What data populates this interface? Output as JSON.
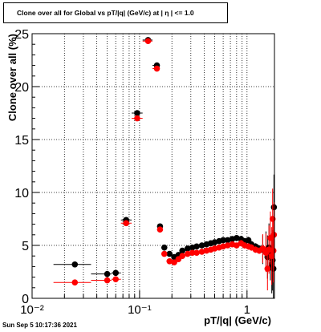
{
  "chart_data": {
    "type": "scatter",
    "title": "Clone  over all for Global vs pT/|q| (GeV/c) at |  η | <= 1.0",
    "xlabel": "pT/|q| (GeV/c)",
    "ylabel": "Clone  over all (%)",
    "xscale": "log",
    "xlim": [
      0.01,
      1.8
    ],
    "ylim": [
      0,
      25
    ],
    "grid": true,
    "x_tick_labels": [
      "10⁻²",
      "10⁻¹",
      "1"
    ],
    "y_tick_labels": [
      "0",
      "5",
      "10",
      "15",
      "20",
      "25"
    ],
    "series": [
      {
        "color": "#000000",
        "points": [
          [
            0.025,
            3.2
          ],
          [
            0.05,
            2.3
          ],
          [
            0.06,
            2.4
          ],
          [
            0.075,
            7.4
          ],
          [
            0.095,
            17.5
          ],
          [
            0.12,
            24.4
          ],
          [
            0.145,
            22.0
          ],
          [
            0.155,
            6.8
          ],
          [
            0.17,
            4.8
          ],
          [
            0.19,
            4.2
          ],
          [
            0.21,
            3.9
          ],
          [
            0.23,
            4.1
          ],
          [
            0.25,
            4.5
          ],
          [
            0.28,
            4.7
          ],
          [
            0.31,
            4.8
          ],
          [
            0.34,
            4.9
          ],
          [
            0.38,
            5.0
          ],
          [
            0.42,
            5.1
          ],
          [
            0.46,
            5.2
          ],
          [
            0.5,
            5.3
          ],
          [
            0.55,
            5.4
          ],
          [
            0.6,
            5.5
          ],
          [
            0.66,
            5.5
          ],
          [
            0.73,
            5.6
          ],
          [
            0.8,
            5.7
          ],
          [
            0.88,
            5.6
          ],
          [
            0.95,
            5.4
          ],
          [
            1.03,
            5.5
          ],
          [
            1.1,
            5.1
          ],
          [
            1.2,
            4.9
          ],
          [
            1.3,
            4.7
          ],
          [
            1.4,
            4.6
          ],
          [
            1.5,
            4.5
          ],
          [
            1.55,
            3.9
          ],
          [
            1.6,
            4.8
          ],
          [
            1.65,
            4.2
          ],
          [
            1.7,
            3.2
          ],
          [
            1.73,
            3.6
          ],
          [
            1.76,
            2.8
          ],
          [
            1.78,
            8.6
          ]
        ]
      },
      {
        "color": "#ff0000",
        "points": [
          [
            0.025,
            1.5
          ],
          [
            0.05,
            1.7
          ],
          [
            0.06,
            1.8
          ],
          [
            0.075,
            7.1
          ],
          [
            0.095,
            17.0
          ],
          [
            0.12,
            24.3
          ],
          [
            0.145,
            21.7
          ],
          [
            0.155,
            6.5
          ],
          [
            0.17,
            4.2
          ],
          [
            0.19,
            3.5
          ],
          [
            0.21,
            3.4
          ],
          [
            0.23,
            3.7
          ],
          [
            0.25,
            4.0
          ],
          [
            0.28,
            4.2
          ],
          [
            0.31,
            4.3
          ],
          [
            0.34,
            4.3
          ],
          [
            0.38,
            4.4
          ],
          [
            0.42,
            4.5
          ],
          [
            0.46,
            4.6
          ],
          [
            0.5,
            4.7
          ],
          [
            0.55,
            4.8
          ],
          [
            0.6,
            4.9
          ],
          [
            0.66,
            5.0
          ],
          [
            0.73,
            5.1
          ],
          [
            0.8,
            5.0
          ],
          [
            0.88,
            5.2
          ],
          [
            0.95,
            5.0
          ],
          [
            1.03,
            4.9
          ],
          [
            1.1,
            4.8
          ],
          [
            1.2,
            4.6
          ],
          [
            1.3,
            4.5
          ],
          [
            1.4,
            4.7
          ],
          [
            1.5,
            4.3
          ],
          [
            1.55,
            2.8
          ],
          [
            1.6,
            4.6
          ],
          [
            1.65,
            5.7
          ],
          [
            1.7,
            4.0
          ],
          [
            1.73,
            7.5
          ],
          [
            1.76,
            4.5
          ],
          [
            1.78,
            6.0
          ]
        ]
      }
    ]
  },
  "timestamp": "Sun Sep  5 10:17:36 2021"
}
